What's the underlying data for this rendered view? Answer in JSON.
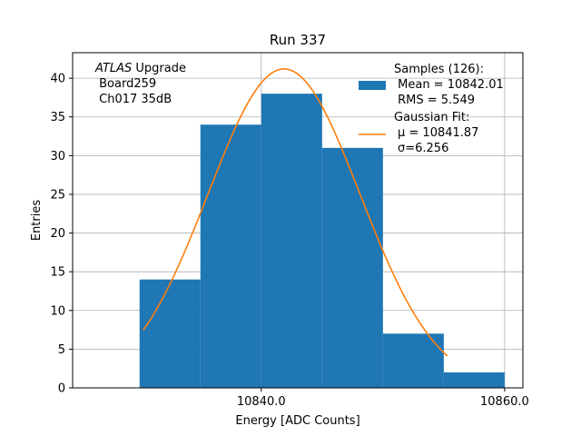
{
  "chart_data": {
    "type": "bar",
    "title": "Run 337",
    "xlabel": "Energy [ADC Counts]",
    "ylabel": "Entries",
    "xlim": [
      10824.5,
      10861.5
    ],
    "ylim": [
      0,
      43.3
    ],
    "grid": true,
    "x_ticks": [
      {
        "value": 10840,
        "label": "10840.0"
      },
      {
        "value": 10860,
        "label": "10860.0"
      }
    ],
    "y_ticks": [
      {
        "value": 0,
        "label": "0"
      },
      {
        "value": 5,
        "label": "5"
      },
      {
        "value": 10,
        "label": "10"
      },
      {
        "value": 15,
        "label": "15"
      },
      {
        "value": 20,
        "label": "20"
      },
      {
        "value": 25,
        "label": "25"
      },
      {
        "value": 30,
        "label": "30"
      },
      {
        "value": 35,
        "label": "35"
      },
      {
        "value": 40,
        "label": "40"
      }
    ],
    "histogram": {
      "color": "#1f77b4",
      "bins": [
        {
          "x0": 10830,
          "x1": 10835,
          "value": 14
        },
        {
          "x0": 10835,
          "x1": 10840,
          "value": 34
        },
        {
          "x0": 10840,
          "x1": 10845,
          "value": 38
        },
        {
          "x0": 10845,
          "x1": 10850,
          "value": 31
        },
        {
          "x0": 10850,
          "x1": 10855,
          "value": 7
        },
        {
          "x0": 10855,
          "x1": 10860,
          "value": 2
        }
      ]
    },
    "fit": {
      "color": "#ff7f0e",
      "mu": 10841.87,
      "sigma": 6.256,
      "amplitude": 41.2,
      "x_range": [
        10830.3,
        10855.3
      ]
    },
    "legend": {
      "placement": "top-right",
      "entries": [
        {
          "kind": "patch",
          "color": "#1f77b4",
          "lines": [
            "Samples (126):",
            " Mean = 10842.01",
            " RMS = 5.549"
          ]
        },
        {
          "kind": "line",
          "color": "#ff7f0e",
          "lines": [
            "Gaussian Fit:",
            "μ = 10841.87",
            "σ=6.256"
          ]
        }
      ]
    },
    "annotation": {
      "placement": "top-left",
      "italic": "ATLAS",
      "lines": [
        " Upgrade",
        " Board259",
        " Ch017 35dB"
      ]
    }
  }
}
